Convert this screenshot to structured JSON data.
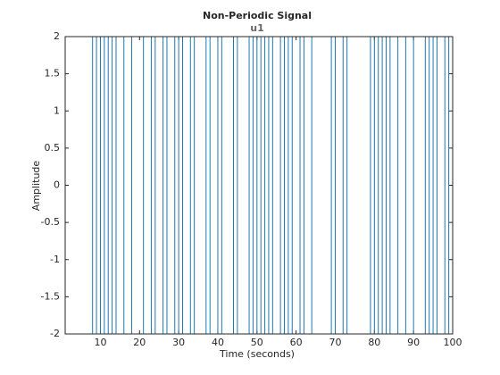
{
  "chart_data": {
    "type": "stairs",
    "title": "Non-Periodic Signal",
    "subtitle": "u1",
    "x_label": "Time (seconds)",
    "y_label": "Amplitude",
    "series": [
      {
        "name": "u1",
        "color": "#1f77b4",
        "x": [
          1,
          8,
          9,
          10,
          11,
          12,
          13,
          14,
          16,
          18,
          21,
          23,
          24,
          26,
          27,
          29,
          30,
          31,
          33,
          34,
          37,
          38,
          40,
          41,
          44,
          45,
          48,
          49,
          50,
          51,
          52,
          53,
          54,
          56,
          57,
          58,
          59,
          61,
          62,
          64,
          69,
          70,
          72,
          73,
          79,
          80,
          81,
          82,
          83,
          84,
          86,
          88,
          90,
          93,
          94,
          95,
          96,
          98,
          99,
          100
        ],
        "values": [
          2,
          -2,
          2,
          -2,
          2,
          -2,
          2,
          -2,
          2,
          -2,
          2,
          -2,
          2,
          -2,
          2,
          -2,
          2,
          -2,
          2,
          -2,
          2,
          -2,
          2,
          -2,
          2,
          -2,
          2,
          -2,
          2,
          -2,
          2,
          -2,
          2,
          -2,
          2,
          -2,
          2,
          -2,
          2,
          -2,
          2,
          -2,
          2,
          -2,
          2,
          -2,
          2,
          -2,
          2,
          -2,
          2,
          -2,
          2,
          -2,
          2,
          -2,
          2,
          -2,
          2,
          2
        ]
      }
    ],
    "xlim": [
      1,
      100
    ],
    "xticks": [
      10,
      20,
      30,
      40,
      50,
      60,
      70,
      80,
      90,
      100
    ],
    "ylim": [
      -2,
      2
    ],
    "yticks": [
      -2,
      -1.5,
      -1,
      -0.5,
      0,
      0.5,
      1,
      1.5,
      2
    ],
    "grid": false
  }
}
